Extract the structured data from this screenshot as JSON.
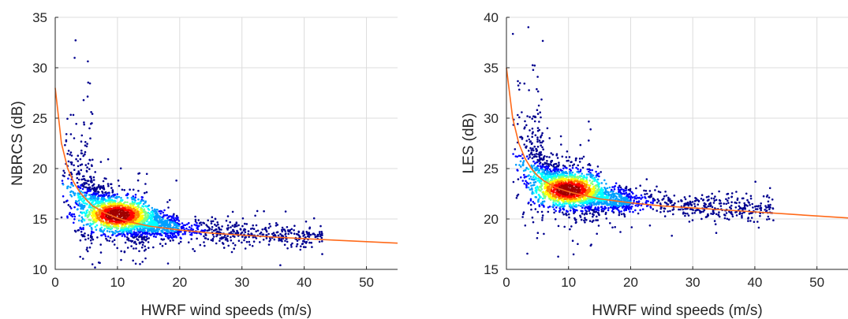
{
  "chart_data": [
    {
      "type": "scatter",
      "title": "",
      "xlabel": "HWRF wind speeds (m/s)",
      "ylabel": "NBRCS (dB)",
      "xlim": [
        0,
        55
      ],
      "ylim": [
        10,
        35
      ],
      "xticks": [
        0,
        10,
        20,
        30,
        40,
        50
      ],
      "yticks": [
        10,
        15,
        20,
        25,
        30,
        35
      ],
      "grid": true,
      "density_colormap": [
        "#00008f",
        "#0000ff",
        "#00a0ff",
        "#00ffff",
        "#80ff80",
        "#ffff00",
        "#ff8000",
        "#ff0000",
        "#a00000"
      ],
      "scatter_cloud": {
        "x_range": [
          1,
          43
        ],
        "peak": {
          "x": 10,
          "y": 15.4
        },
        "center_y_at": [
          {
            "x": 2,
            "y": 18.0
          },
          {
            "x": 5,
            "y": 16.6
          },
          {
            "x": 10,
            "y": 15.4
          },
          {
            "x": 15,
            "y": 14.6
          },
          {
            "x": 20,
            "y": 14.1
          },
          {
            "x": 30,
            "y": 13.6
          },
          {
            "x": 40,
            "y": 13.2
          }
        ]
      },
      "fit_curve": {
        "color": "#ff6a1a",
        "x": [
          0,
          1,
          2,
          3,
          4,
          5,
          6,
          8,
          10,
          12,
          15,
          20,
          25,
          30,
          35,
          40,
          45,
          50,
          55
        ],
        "y": [
          28.0,
          22.5,
          20.0,
          18.6,
          17.6,
          16.9,
          16.3,
          15.6,
          15.1,
          14.7,
          14.3,
          13.9,
          13.6,
          13.4,
          13.2,
          13.05,
          12.9,
          12.75,
          12.6
        ]
      }
    },
    {
      "type": "scatter",
      "title": "",
      "xlabel": "HWRF wind speeds (m/s)",
      "ylabel": "LES (dB)",
      "xlim": [
        0,
        55
      ],
      "ylim": [
        15,
        40
      ],
      "xticks": [
        0,
        10,
        20,
        30,
        40,
        50
      ],
      "yticks": [
        15,
        20,
        25,
        30,
        35,
        40
      ],
      "grid": true,
      "density_colormap": [
        "#00008f",
        "#0000ff",
        "#00a0ff",
        "#00ffff",
        "#80ff80",
        "#ffff00",
        "#ff8000",
        "#ff0000",
        "#a00000"
      ],
      "scatter_cloud": {
        "x_range": [
          1,
          43
        ],
        "peak": {
          "x": 10,
          "y": 22.9
        },
        "center_y_at": [
          {
            "x": 2,
            "y": 25.5
          },
          {
            "x": 5,
            "y": 24.2
          },
          {
            "x": 10,
            "y": 22.9
          },
          {
            "x": 15,
            "y": 22.2
          },
          {
            "x": 20,
            "y": 21.7
          },
          {
            "x": 30,
            "y": 21.3
          },
          {
            "x": 40,
            "y": 21.0
          }
        ]
      },
      "fit_curve": {
        "color": "#ff6a1a",
        "x": [
          0,
          1,
          2,
          3,
          4,
          5,
          6,
          8,
          10,
          12,
          15,
          20,
          25,
          30,
          35,
          40,
          45,
          50,
          55
        ],
        "y": [
          35.0,
          30.0,
          27.5,
          26.0,
          25.0,
          24.3,
          23.8,
          23.1,
          22.7,
          22.4,
          22.0,
          21.6,
          21.3,
          21.1,
          20.9,
          20.7,
          20.5,
          20.3,
          20.1
        ]
      }
    }
  ]
}
